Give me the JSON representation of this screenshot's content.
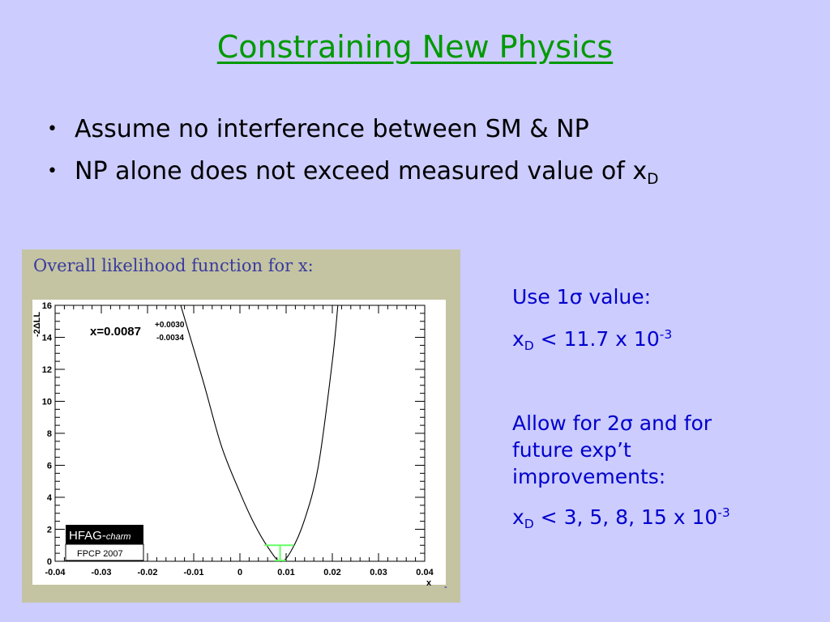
{
  "slide": {
    "title": "Constraining New Physics",
    "bullets": [
      {
        "text": "Assume no interference between SM & NP",
        "sub": ""
      },
      {
        "text": "NP alone does not exceed measured value of x",
        "sub": "D"
      }
    ],
    "bullet_glyph": "•"
  },
  "panel": {
    "title": "Overall likelihood function for x:",
    "measurement": {
      "label": "x=0.0087",
      "plus": "+0.0030",
      "minus": "-0.0034"
    },
    "logo": {
      "name": "HFAG-",
      "sub": "charm",
      "caption": "FPCP 2007"
    },
    "corner_mark": "-"
  },
  "right_text": {
    "use": {
      "pre": "Use 1",
      "sym": "σ",
      "post": " value:"
    },
    "limit1": {
      "x": "x",
      "sub": "D",
      "rest": " < 11.7 x 10",
      "exp": "-3"
    },
    "allow": {
      "pre": "Allow for 2",
      "sym": "σ",
      "post1": " and for",
      "line2": "future exp’t",
      "line3": "improvements:"
    },
    "limit2": {
      "x": "x",
      "sub": "D",
      "rest": " < 3, 5, 8, 15 x 10",
      "exp": "-3"
    }
  },
  "chart_data": {
    "type": "line",
    "title": "Overall likelihood function for x:",
    "xlabel": "x",
    "ylabel": "-2ΔLL",
    "xlim": [
      -0.04,
      0.04
    ],
    "ylim": [
      0,
      16
    ],
    "xticks": [
      "-0.04",
      "-0.03",
      "-0.02",
      "-0.01",
      "0",
      "0.01",
      "0.02",
      "0.03",
      "0.04"
    ],
    "yticks": [
      "0",
      "2",
      "4",
      "6",
      "8",
      "10",
      "12",
      "14",
      "16"
    ],
    "x": [
      -0.0128,
      -0.008,
      -0.004,
      0.0,
      0.003,
      0.006,
      0.0087,
      0.011,
      0.014,
      0.017,
      0.02,
      0.0212
    ],
    "y": [
      16.0,
      11.3,
      7.2,
      4.3,
      2.4,
      0.9,
      0.0,
      0.6,
      2.6,
      6.0,
      12.5,
      16.0
    ],
    "interval": {
      "center": 0.0087,
      "low": 0.0053,
      "high": 0.0117,
      "level": 1
    },
    "grid": false,
    "color": "#000000",
    "interval_color": "#66ff66"
  }
}
